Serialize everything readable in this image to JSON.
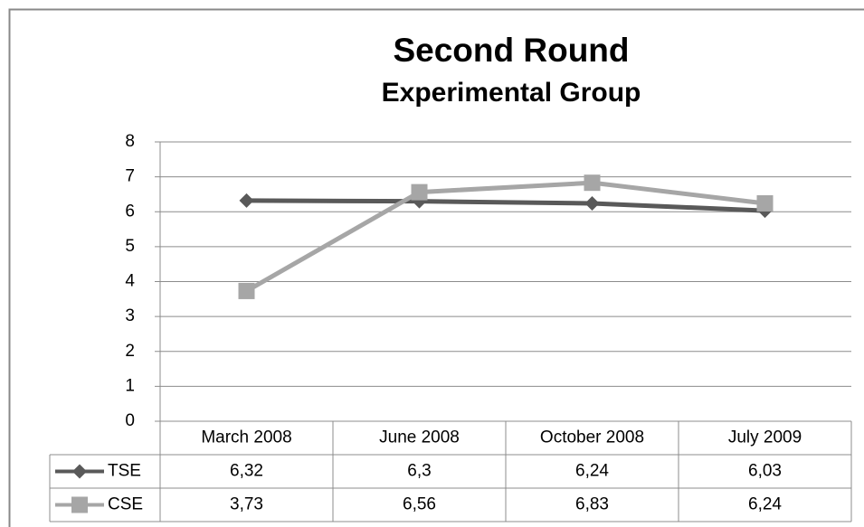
{
  "chart_data": {
    "type": "line",
    "title": "Second Round",
    "subtitle": "Experimental Group",
    "categories": [
      "March 2008",
      "June 2008",
      "October 2008",
      "July 2009"
    ],
    "series": [
      {
        "name": "TSE",
        "color": "#595959",
        "marker": "diamond",
        "values": [
          6.32,
          6.3,
          6.24,
          6.03
        ],
        "value_labels": [
          "6,32",
          "6,3",
          "6,24",
          "6,03"
        ]
      },
      {
        "name": "CSE",
        "color": "#a6a6a6",
        "marker": "square",
        "values": [
          3.73,
          6.56,
          6.83,
          6.24
        ],
        "value_labels": [
          "3,73",
          "6,56",
          "6,83",
          "6,24"
        ]
      }
    ],
    "ylim": [
      0,
      8
    ],
    "yticks": [
      0,
      1,
      2,
      3,
      4,
      5,
      6,
      7,
      8
    ],
    "grid": true
  }
}
